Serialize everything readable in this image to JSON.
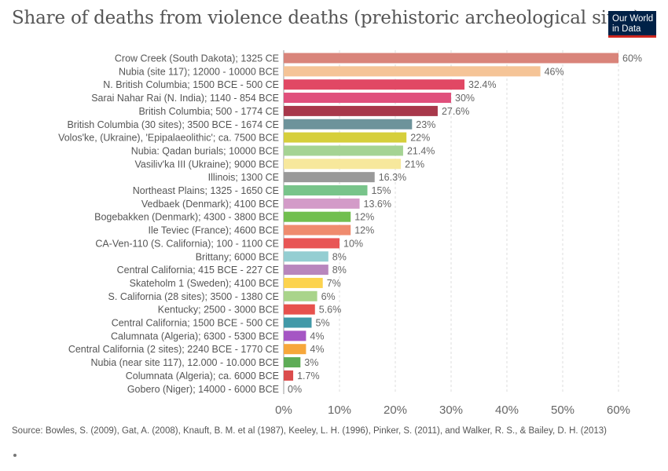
{
  "title": "Share of deaths from violence deaths (prehistoric archeological sites)",
  "logo": {
    "line1": "Our World",
    "line2": "in Data",
    "bg": "#002147",
    "accent": "#ce261e"
  },
  "source": "Source: Bowles, S. (2009), Gat, A. (2008), Knauft, B. M. et al (1987), Keeley, L. H. (1996), Pinker, S. (2011), and Walker, R. S., & Bailey, D. H. (2013)",
  "chart_data": {
    "type": "bar",
    "orientation": "horizontal",
    "title": "Share of deaths from violence deaths (prehistoric archeological sites)",
    "xlim": [
      0,
      60
    ],
    "ticks": [
      "0%",
      "10%",
      "20%",
      "30%",
      "40%",
      "50%",
      "60%"
    ],
    "tick_values": [
      0,
      10,
      20,
      30,
      40,
      50,
      60
    ],
    "grid": true,
    "categories": [
      "Crow Creek (South Dakota); 1325 CE",
      "Nubia (site 117); 12000 - 10000 BCE",
      "N. British Columbia; 1500 BCE - 500 CE",
      "Sarai Nahar Rai (N. India); 1140 - 854 BCE",
      "British Columbia; 500 - 1774 CE",
      "British Columbia (30 sites); 3500 BCE - 1674 CE",
      "Volos'ke, (Ukraine), 'Epipalaeolithic'; ca. 7500 BCE",
      "Nubia: Qadan burials; 10000 BCE",
      "Vasiliv'ka III (Ukraine); 9000 BCE",
      "Illinois; 1300 CE",
      "Northeast Plains; 1325 - 1650 CE",
      "Vedbaek (Denmark); 4100 BCE",
      "Bogebakken (Denmark); 4300 - 3800 BCE",
      "Ile Teviec (France); 4600 BCE",
      "CA-Ven-110 (S. California); 100 - 1100 CE",
      "Brittany; 6000 BCE",
      "Central California; 415 BCE - 227 CE",
      "Skateholm 1 (Sweden); 4100 BCE",
      "S. California (28 sites); 3500 - 1380 CE",
      "Kentucky; 2500 - 3000 BCE",
      "Central California; 1500 BCE - 500 CE",
      "Calumnata (Algeria); 6300 - 5300 BCE",
      "Central California (2 sites); 2240 BCE - 1770 CE",
      "Nubia (near site 117), 12.000 - 10.000 BCE",
      "Columnata (Algeria); ca. 6000 BCE",
      "Gobero (Niger); 14000 - 6000 BCE"
    ],
    "values": [
      60,
      46,
      32.4,
      30,
      27.6,
      23,
      22,
      21.4,
      21,
      16.3,
      15,
      13.6,
      12,
      12,
      10,
      8,
      8,
      7,
      6,
      5.6,
      5,
      4,
      4,
      3,
      1.7,
      0
    ],
    "value_labels": [
      "60%",
      "46%",
      "32.4%",
      "30%",
      "27.6%",
      "23%",
      "22%",
      "21.4%",
      "21%",
      "16.3%",
      "15%",
      "13.6%",
      "12%",
      "12%",
      "10%",
      "8%",
      "8%",
      "7%",
      "6%",
      "5.6%",
      "5%",
      "4%",
      "4%",
      "3%",
      "1.7%",
      "0%"
    ],
    "colors": [
      "#d9847a",
      "#f5c497",
      "#e14864",
      "#e0507c",
      "#a8384b",
      "#6d939b",
      "#d6cf3b",
      "#a5d393",
      "#f7e89c",
      "#999999",
      "#78c48a",
      "#d39bc8",
      "#71bf4f",
      "#ef8b6e",
      "#e85656",
      "#94ced2",
      "#b886bd",
      "#fcd34e",
      "#a9d48b",
      "#e7514d",
      "#4199a8",
      "#a556c4",
      "#f6a73b",
      "#5eac57",
      "#db4c4c",
      "#e0e0e0"
    ]
  }
}
